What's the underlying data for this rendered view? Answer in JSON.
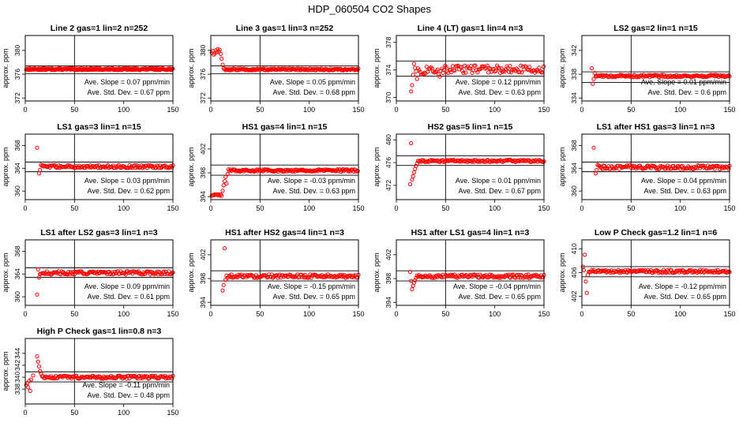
{
  "title": "HDP_060504  CO2 Shapes",
  "ylabel": "approx. ppm",
  "marker_color": "#ff0000",
  "slope_label": "Ave. Slope =",
  "slope_unit": "ppm/min",
  "std_label": "Ave. Std. Dev. =",
  "std_unit": "ppm",
  "chart_data": [
    {
      "type": "scatter",
      "title": "Line 2 gas=1 lin=2 n=252",
      "xlim": [
        0,
        150
      ],
      "ylim": [
        371.5,
        382.5
      ],
      "xticks": [
        0,
        50,
        100,
        150
      ],
      "yticks": [
        372,
        376,
        380
      ],
      "hlines": [
        376.1,
        377.4
      ],
      "slope": "0.07",
      "std": "0.67",
      "start": 1,
      "baseline": 376.85,
      "noise": 0.15,
      "pattern": "flat"
    },
    {
      "type": "scatter",
      "title": "Line 3 gas=1 lin=3 n=252",
      "xlim": [
        0,
        150
      ],
      "ylim": [
        371.5,
        382.5
      ],
      "xticks": [
        0,
        50,
        100,
        150
      ],
      "yticks": [
        372,
        376,
        380
      ],
      "hlines": [
        376.1,
        377.4
      ],
      "slope": "0.05",
      "std": "0.68",
      "start": 1,
      "baseline": 376.8,
      "noise": 0.15,
      "pattern": "line3"
    },
    {
      "type": "scatter",
      "title": "Line 4 (LT) gas=1 lin=4 n=3",
      "xlim": [
        0,
        150
      ],
      "ylim": [
        369.5,
        379
      ],
      "xticks": [
        0,
        50,
        100,
        150
      ],
      "yticks": [
        370,
        374,
        378
      ],
      "hlines": [
        373.1,
        375.3
      ],
      "slope": "0.12",
      "std": "0.63",
      "start": 15,
      "baseline": 374.1,
      "noise": 0.45,
      "pattern": "line4"
    },
    {
      "type": "scatter",
      "title": "LS2 gas=2 lin=1 n=15",
      "xlim": [
        0,
        150
      ],
      "ylim": [
        333.5,
        344.5
      ],
      "xticks": [
        0,
        50,
        100,
        150
      ],
      "yticks": [
        334,
        338,
        342
      ],
      "hlines": [
        336.6,
        338.4
      ],
      "slope": "0.01",
      "std": "0.6",
      "start": 10,
      "baseline": 337.7,
      "noise": 0.2,
      "pattern": "ls2"
    },
    {
      "type": "scatter",
      "title": "LS1 gas=3 lin=1 n=15",
      "xlim": [
        0,
        150
      ],
      "ylim": [
        358.5,
        370
      ],
      "xticks": [
        0,
        50,
        100,
        150
      ],
      "yticks": [
        360,
        364,
        368
      ],
      "hlines": [
        363.4,
        365.1
      ],
      "slope": "0.03",
      "std": "0.62",
      "start": 12,
      "baseline": 364.3,
      "noise": 0.25,
      "pattern": "spike"
    },
    {
      "type": "scatter",
      "title": "HS1 gas=4 lin=1 n=15",
      "xlim": [
        0,
        150
      ],
      "ylim": [
        393.5,
        404.5
      ],
      "xticks": [
        0,
        50,
        100,
        150
      ],
      "yticks": [
        394,
        398,
        402
      ],
      "hlines": [
        397.6,
        399.3
      ],
      "slope": "-0.03",
      "std": "0.63",
      "start": 1,
      "baseline": 398.4,
      "noise": 0.2,
      "pattern": "hs1"
    },
    {
      "type": "scatter",
      "title": "HS2 gas=5 lin=1 n=15",
      "xlim": [
        0,
        150
      ],
      "ylim": [
        469.5,
        481
      ],
      "xticks": [
        0,
        50,
        100,
        150
      ],
      "yticks": [
        472,
        476,
        480
      ],
      "hlines": [
        475.5,
        477.2
      ],
      "slope": "0.01",
      "std": "0.67",
      "start": 14,
      "baseline": 476.3,
      "noise": 0.2,
      "pattern": "hs2"
    },
    {
      "type": "scatter",
      "title": "LS1 after HS1 gas=3 lin=1 n=3",
      "xlim": [
        0,
        150
      ],
      "ylim": [
        358.5,
        370
      ],
      "xticks": [
        0,
        50,
        100,
        150
      ],
      "yticks": [
        360,
        364,
        368
      ],
      "hlines": [
        363.4,
        365.1
      ],
      "slope": "0.04",
      "std": "0.63",
      "start": 12,
      "baseline": 364.2,
      "noise": 0.35,
      "pattern": "spike"
    },
    {
      "type": "scatter",
      "title": "LS1 after LS2 gas=3 lin=1 n=3",
      "xlim": [
        0,
        150
      ],
      "ylim": [
        358.5,
        370
      ],
      "xticks": [
        0,
        50,
        100,
        150
      ],
      "yticks": [
        360,
        364,
        368
      ],
      "hlines": [
        363.4,
        365.1
      ],
      "slope": "0.09",
      "std": "0.61",
      "start": 12,
      "baseline": 364.2,
      "noise": 0.3,
      "pattern": "ls1ls2"
    },
    {
      "type": "scatter",
      "title": "HS1 after HS2 gas=4 lin=1 n=3",
      "xlim": [
        0,
        150
      ],
      "ylim": [
        393.5,
        404.5
      ],
      "xticks": [
        0,
        50,
        100,
        150
      ],
      "yticks": [
        394,
        398,
        402
      ],
      "hlines": [
        397.6,
        399.3
      ],
      "slope": "-0.15",
      "std": "0.65",
      "start": 12,
      "baseline": 398.4,
      "noise": 0.3,
      "pattern": "hs1hs2"
    },
    {
      "type": "scatter",
      "title": "HS1 after LS1 gas=4 lin=1 n=3",
      "xlim": [
        0,
        150
      ],
      "ylim": [
        393.5,
        404.5
      ],
      "xticks": [
        0,
        50,
        100,
        150
      ],
      "yticks": [
        394,
        398,
        402
      ],
      "hlines": [
        397.6,
        399.3
      ],
      "slope": "-0.04",
      "std": "0.65",
      "start": 14,
      "baseline": 398.4,
      "noise": 0.3,
      "pattern": "hs1ls1"
    },
    {
      "type": "scatter",
      "title": "Low P Check gas=1.2 lin=1 n=6",
      "xlim": [
        0,
        150
      ],
      "ylim": [
        400.5,
        411.5
      ],
      "xticks": [
        0,
        50,
        100,
        150
      ],
      "yticks": [
        402,
        406,
        410
      ],
      "hlines": [
        405.3,
        407
      ],
      "slope": "-0.12",
      "std": "0.65",
      "start": 1,
      "baseline": 406.2,
      "noise": 0.25,
      "pattern": "lowp"
    },
    {
      "type": "scatter",
      "title": "High P Check gas=1 lin=0.8 n=3",
      "xlim": [
        0,
        150
      ],
      "ylim": [
        335.5,
        346.5
      ],
      "xticks": [
        0,
        50,
        100,
        150
      ],
      "yticks": [
        338,
        340,
        342,
        344
      ],
      "hlines": [
        339.2,
        340.9
      ],
      "slope": "-0.11",
      "std": "0.48",
      "start": 1,
      "baseline": 340.0,
      "noise": 0.25,
      "pattern": "highp"
    }
  ]
}
